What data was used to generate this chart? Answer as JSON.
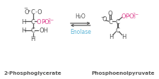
{
  "bg_color": "#ffffff",
  "text_color_dark": "#555555",
  "text_color_pink": "#e0559a",
  "text_color_blue": "#5ab4d6",
  "label_2pg": "2-Phosphoglycerate",
  "label_pep": "Phosphoenolpyruvate",
  "enzyme": "Enolase",
  "h2o": "H₂O",
  "figsize": [
    2.25,
    1.13
  ],
  "dpi": 100
}
